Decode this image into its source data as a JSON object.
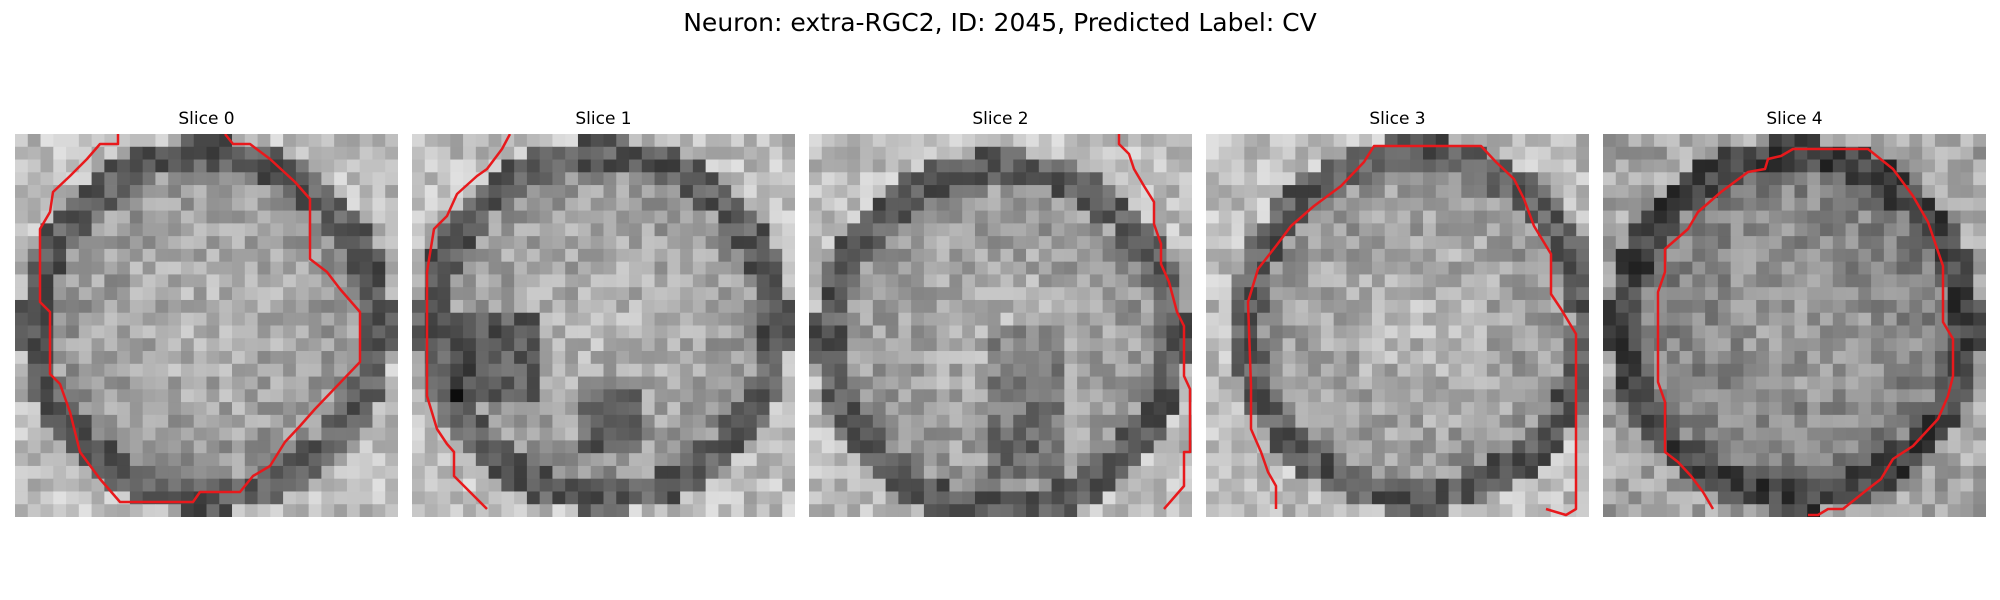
{
  "figure": {
    "title": "Neuron: extra-RGC2, ID: 2045, Predicted Label: CV"
  },
  "panels": [
    {
      "title": "Slice 0"
    },
    {
      "title": "Slice 1"
    },
    {
      "title": "Slice 2"
    },
    {
      "title": "Slice 3"
    },
    {
      "title": "Slice 4"
    }
  ],
  "colors": {
    "contour": "#e8191c",
    "background": "#ffffff"
  },
  "image": {
    "colormap": "grayscale",
    "grid": [
      30,
      30
    ]
  }
}
